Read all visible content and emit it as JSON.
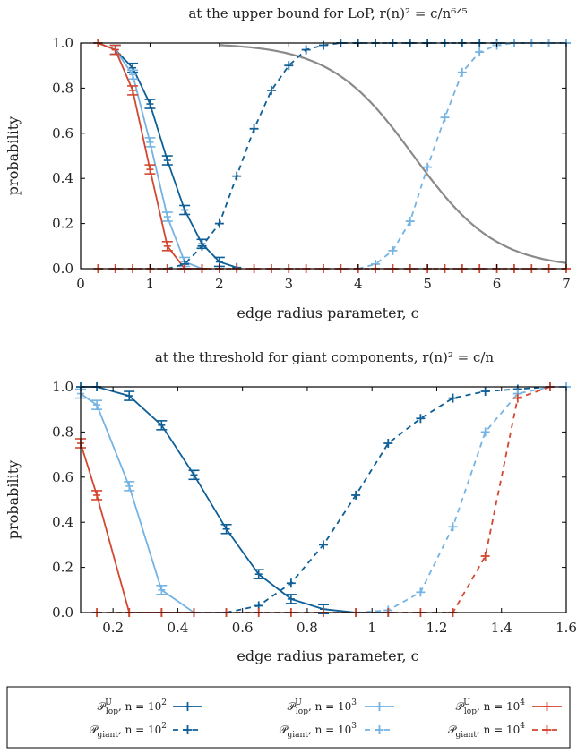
{
  "colors": {
    "n100": "#0e5f97",
    "n1000": "#74b3e3",
    "n10000": "#d3472f",
    "bound": "#8a8a8a",
    "axis": "#000000"
  },
  "chart_data": [
    {
      "type": "line",
      "title": "at the upper bound for LoP, r(n)² = c/n⁶ᐟ⁵",
      "xlabel": "edge radius parameter, c",
      "ylabel": "probability",
      "xlim": [
        0,
        7
      ],
      "ylim": [
        0,
        1
      ],
      "xticks": [
        "0",
        "1",
        "2",
        "3",
        "4",
        "5",
        "6",
        "7"
      ],
      "yticks": [
        "0.0",
        "0.2",
        "0.4",
        "0.6",
        "0.8",
        "1.0"
      ],
      "grid": false,
      "series": [
        {
          "name": "P_lop^U, n = 10^2",
          "kind": "lop",
          "color_key": "n100",
          "x": [
            0.25,
            0.5,
            0.75,
            1.0,
            1.25,
            1.5,
            1.75,
            2.0,
            2.25
          ],
          "y": [
            1.0,
            0.97,
            0.89,
            0.73,
            0.48,
            0.26,
            0.11,
            0.03,
            0.005
          ]
        },
        {
          "name": "P_lop^U, n = 10^3",
          "kind": "lop",
          "color_key": "n1000",
          "x": [
            0.25,
            0.5,
            0.75,
            1.0,
            1.25,
            1.5,
            1.75
          ],
          "y": [
            1.0,
            0.97,
            0.86,
            0.56,
            0.23,
            0.03,
            0.0
          ]
        },
        {
          "name": "P_lop^U, n = 10^4",
          "kind": "lop",
          "color_key": "n10000",
          "x": [
            0.25,
            0.5,
            0.75,
            1.0,
            1.25,
            1.5,
            1.75
          ],
          "y": [
            1.0,
            0.97,
            0.79,
            0.44,
            0.1,
            0.0,
            0.0
          ]
        },
        {
          "name": "P_giant, n = 10^2",
          "kind": "giant",
          "color_key": "n100",
          "x": [
            1.25,
            1.5,
            1.75,
            2.0,
            2.25,
            2.5,
            2.75,
            3.0,
            3.25,
            3.5,
            3.75,
            4.0,
            4.25,
            4.5,
            4.75,
            5.0,
            5.25,
            5.5,
            5.75,
            6.0,
            6.25,
            6.5,
            6.75,
            7.0
          ],
          "y": [
            0.0,
            0.02,
            0.1,
            0.2,
            0.41,
            0.62,
            0.79,
            0.9,
            0.97,
            0.99,
            1.0,
            1.0,
            1.0,
            1.0,
            1.0,
            1.0,
            1.0,
            1.0,
            1.0,
            1.0,
            1.0,
            1.0,
            1.0,
            1.0
          ]
        },
        {
          "name": "P_giant, n = 10^3",
          "kind": "giant",
          "color_key": "n1000",
          "x": [
            4.0,
            4.25,
            4.5,
            4.75,
            5.0,
            5.25,
            5.5,
            5.75,
            6.0,
            6.25,
            6.5,
            6.75,
            7.0
          ],
          "y": [
            0.0,
            0.02,
            0.08,
            0.21,
            0.45,
            0.67,
            0.87,
            0.96,
            0.99,
            1.0,
            1.0,
            1.0,
            1.0
          ]
        },
        {
          "name": "P_giant, n = 10^4",
          "kind": "giant",
          "color_key": "n10000",
          "x": [
            0.25,
            0.5,
            0.75,
            1.0,
            1.25,
            1.5,
            1.75,
            2.0,
            2.25,
            2.5,
            2.75,
            3.0,
            3.25,
            3.5,
            3.75,
            4.0,
            4.25,
            4.5,
            4.75,
            5.0,
            5.25,
            5.5,
            5.75,
            6.0,
            6.25,
            6.5,
            6.75,
            7.0
          ],
          "y": [
            0,
            0,
            0,
            0,
            0,
            0,
            0,
            0,
            0,
            0,
            0,
            0,
            0,
            0,
            0,
            0,
            0,
            0,
            0,
            0,
            0,
            0,
            0,
            0,
            0,
            0,
            0,
            0
          ]
        }
      ],
      "curve": {
        "kind": "bound",
        "color_key": "bound",
        "x_mid": 4.8,
        "width": 0.6,
        "x_start": 2.0,
        "x_end": 7.0
      }
    },
    {
      "type": "line",
      "title": "at the threshold for giant components, r(n)² = c/n",
      "xlabel": "edge radius parameter, c",
      "ylabel": "probability",
      "xlim": [
        0.1,
        1.6
      ],
      "ylim": [
        0,
        1
      ],
      "xticks": [
        "0.2",
        "0.4",
        "0.6",
        "0.8",
        "1",
        "1.2",
        "1.4",
        "1.6"
      ],
      "xtick_values": [
        0.2,
        0.4,
        0.6,
        0.8,
        1.0,
        1.2,
        1.4,
        1.6
      ],
      "yticks": [
        "0.0",
        "0.2",
        "0.4",
        "0.6",
        "0.8",
        "1.0"
      ],
      "grid": false,
      "series": [
        {
          "name": "P_lop^U, n = 10^2",
          "kind": "lop",
          "color_key": "n100",
          "x": [
            0.1,
            0.15,
            0.25,
            0.35,
            0.45,
            0.55,
            0.65,
            0.75,
            0.85,
            0.95,
            1.05
          ],
          "y": [
            1.0,
            1.0,
            0.96,
            0.83,
            0.61,
            0.37,
            0.17,
            0.06,
            0.015,
            0.0,
            0.0
          ]
        },
        {
          "name": "P_lop^U, n = 10^3",
          "kind": "lop",
          "color_key": "n1000",
          "x": [
            0.1,
            0.15,
            0.25,
            0.35,
            0.45,
            0.55
          ],
          "y": [
            0.97,
            0.92,
            0.56,
            0.1,
            0.0,
            0.0
          ]
        },
        {
          "name": "P_lop^U, n = 10^4",
          "kind": "lop",
          "color_key": "n10000",
          "x": [
            0.1,
            0.15,
            0.25,
            0.35,
            0.45
          ],
          "y": [
            0.75,
            0.52,
            0.0,
            0.0,
            0.0
          ]
        },
        {
          "name": "P_giant, n = 10^2",
          "kind": "giant",
          "color_key": "n100",
          "x": [
            0.55,
            0.65,
            0.75,
            0.85,
            0.95,
            1.05,
            1.15,
            1.25,
            1.35,
            1.45,
            1.55
          ],
          "y": [
            0.0,
            0.03,
            0.13,
            0.3,
            0.52,
            0.75,
            0.86,
            0.95,
            0.98,
            0.99,
            1.0
          ]
        },
        {
          "name": "P_giant, n = 10^3",
          "kind": "giant",
          "color_key": "n1000",
          "x": [
            0.95,
            1.05,
            1.15,
            1.25,
            1.35,
            1.45,
            1.55,
            1.6
          ],
          "y": [
            0.0,
            0.01,
            0.09,
            0.38,
            0.8,
            0.97,
            1.0,
            1.0
          ]
        },
        {
          "name": "P_giant, n = 10^4",
          "kind": "giant",
          "color_key": "n10000",
          "x": [
            0.15,
            0.25,
            0.35,
            0.45,
            0.55,
            0.65,
            0.75,
            0.85,
            0.95,
            1.05,
            1.15,
            1.25,
            1.35,
            1.45,
            1.55
          ],
          "y": [
            0,
            0,
            0,
            0,
            0,
            0,
            0,
            0,
            0,
            0,
            0,
            0.0,
            0.25,
            0.95,
            1.0
          ]
        }
      ]
    }
  ],
  "legend": {
    "placement": "bottom",
    "entries": [
      {
        "sym": "𝒫",
        "sub": "lop",
        "sup": "U",
        "text": ", n = 10",
        "exp": "2",
        "color_key": "n100",
        "dash": false
      },
      {
        "sym": "𝒫",
        "sub": "lop",
        "sup": "U",
        "text": ", n = 10",
        "exp": "3",
        "color_key": "n1000",
        "dash": false
      },
      {
        "sym": "𝒫",
        "sub": "lop",
        "sup": "U",
        "text": ", n = 10",
        "exp": "4",
        "color_key": "n10000",
        "dash": false
      },
      {
        "sym": "𝒫",
        "sub": "giant",
        "sup": "",
        "text": ", n = 10",
        "exp": "2",
        "color_key": "n100",
        "dash": true
      },
      {
        "sym": "𝒫",
        "sub": "giant",
        "sup": "",
        "text": ", n = 10",
        "exp": "3",
        "color_key": "n1000",
        "dash": true
      },
      {
        "sym": "𝒫",
        "sub": "giant",
        "sup": "",
        "text": ", n = 10",
        "exp": "4",
        "color_key": "n10000",
        "dash": true
      }
    ]
  }
}
